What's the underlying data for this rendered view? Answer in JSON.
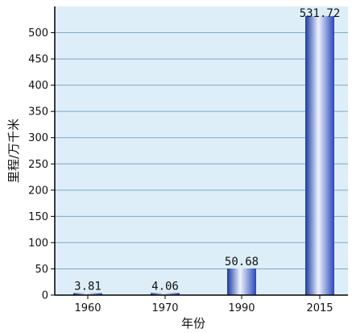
{
  "chart_data": {
    "type": "bar",
    "title": "",
    "xlabel": "年份",
    "ylabel": "里程/万千米",
    "categories": [
      "1960",
      "1970",
      "1990",
      "2015"
    ],
    "values": [
      3.81,
      4.06,
      50.68,
      531.72
    ],
    "value_labels": [
      "3.81",
      "4.06",
      "50.68",
      "531.72"
    ],
    "ylim": [
      0,
      550
    ],
    "yticks": [
      0,
      50,
      100,
      150,
      200,
      250,
      300,
      350,
      400,
      450,
      500
    ],
    "ytick_labels": [
      "0",
      "50",
      "100",
      "150",
      "200",
      "250",
      "300",
      "350",
      "400",
      "450",
      "500"
    ],
    "grid": true,
    "colors": {
      "plot_background": "#ddeef8",
      "gridline": "#7fa9c4",
      "axis": "#000000",
      "bar_edge": "#1a3aa0",
      "bar_mid": "#eef3ff",
      "bar_dark": "#2a48b8"
    }
  }
}
